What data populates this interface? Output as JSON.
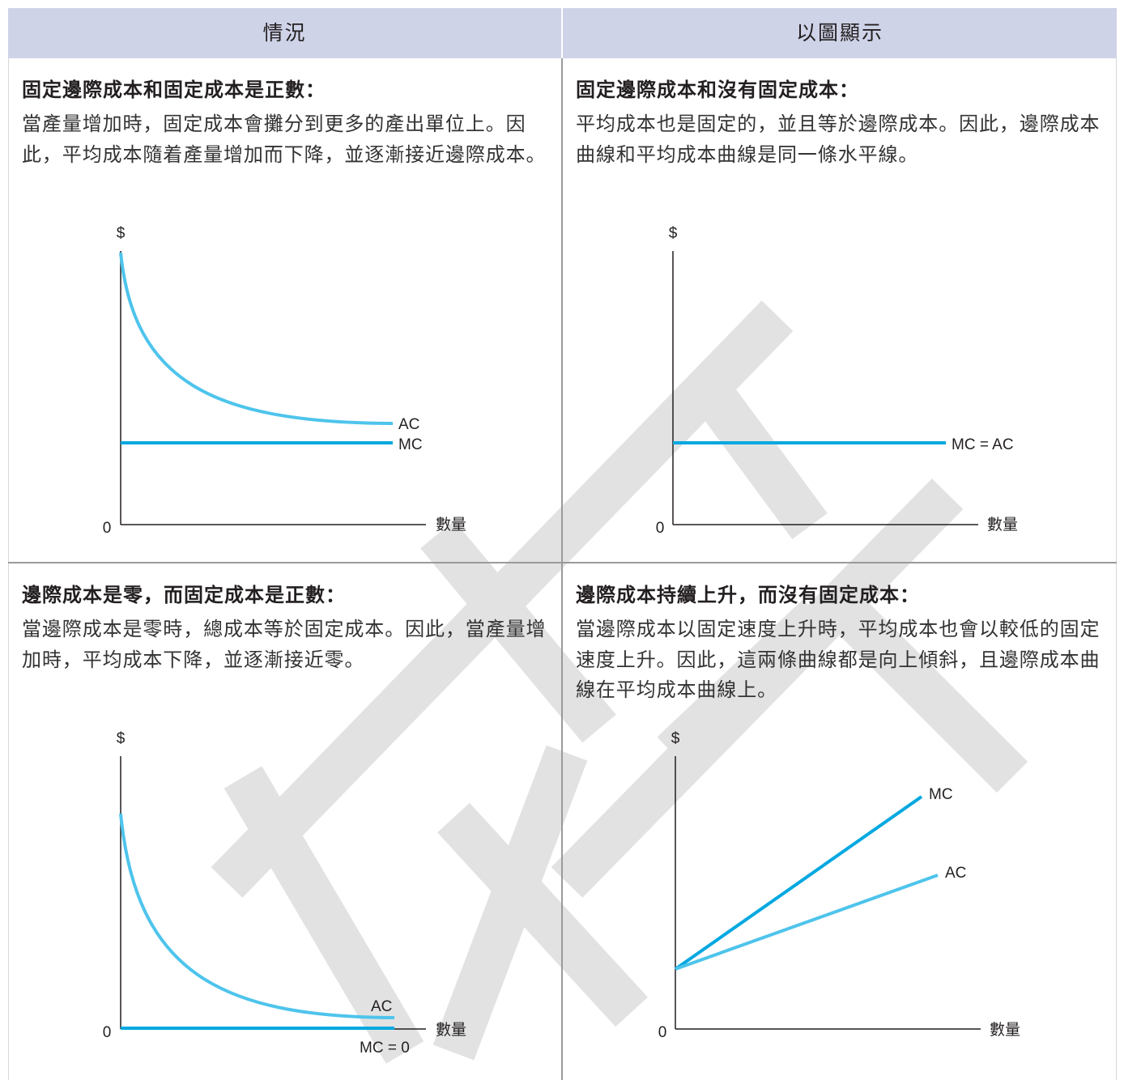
{
  "header": {
    "situation": "情況",
    "graph": "以圖顯示"
  },
  "cells": [
    {
      "title": "固定邊際成本和固定成本是正數：",
      "desc": "當產量增加時，固定成本會攤分到更多的產出單位上。因此，平均成本隨着產量增加而下降，並逐漸接近邊際成本。"
    },
    {
      "title": "固定邊際成本和沒有固定成本：",
      "desc": "平均成本也是固定的，並且等於邊際成本。因此，邊際成本曲線和平均成本曲線是同一條水平線。"
    },
    {
      "title": "邊際成本是零，而固定成本是正數：",
      "desc": "當邊際成本是零時，總成本等於固定成本。因此，當產量增加時，平均成本下降，並逐漸接近零。"
    },
    {
      "title": "邊際成本持續上升，而沒有固定成本：",
      "desc": "當邊際成本以固定速度上升時，平均成本也會以較低的固定速度上升。因此，這兩條曲線都是向上傾斜，且邊際成本曲線在平均成本曲線上。"
    }
  ],
  "colors": {
    "header_bg": "#cfd3e8",
    "ac": "#4ec4ec",
    "mc": "#00a8e0",
    "watermark": "#e2e2e2"
  },
  "chart_data": [
    {
      "type": "line",
      "ylabel": "$",
      "xlabel": "數量",
      "origin": "0",
      "series": [
        {
          "name": "AC",
          "shape": "decreasing-asymptotic",
          "values": []
        },
        {
          "name": "MC",
          "shape": "horizontal",
          "values": []
        }
      ]
    },
    {
      "type": "line",
      "ylabel": "$",
      "xlabel": "數量",
      "origin": "0",
      "series": [
        {
          "name": "MC = AC",
          "shape": "horizontal",
          "values": []
        }
      ]
    },
    {
      "type": "line",
      "ylabel": "$",
      "xlabel": "數量",
      "origin": "0",
      "series": [
        {
          "name": "AC",
          "shape": "decreasing-asymptotic-to-zero",
          "values": []
        },
        {
          "name": "MC = 0",
          "shape": "horizontal-at-zero",
          "values": []
        }
      ]
    },
    {
      "type": "line",
      "ylabel": "$",
      "xlabel": "數量",
      "origin": "0",
      "series": [
        {
          "name": "MC",
          "shape": "linear-increasing-steep",
          "values": []
        },
        {
          "name": "AC",
          "shape": "linear-increasing-gentle",
          "values": []
        }
      ]
    }
  ]
}
